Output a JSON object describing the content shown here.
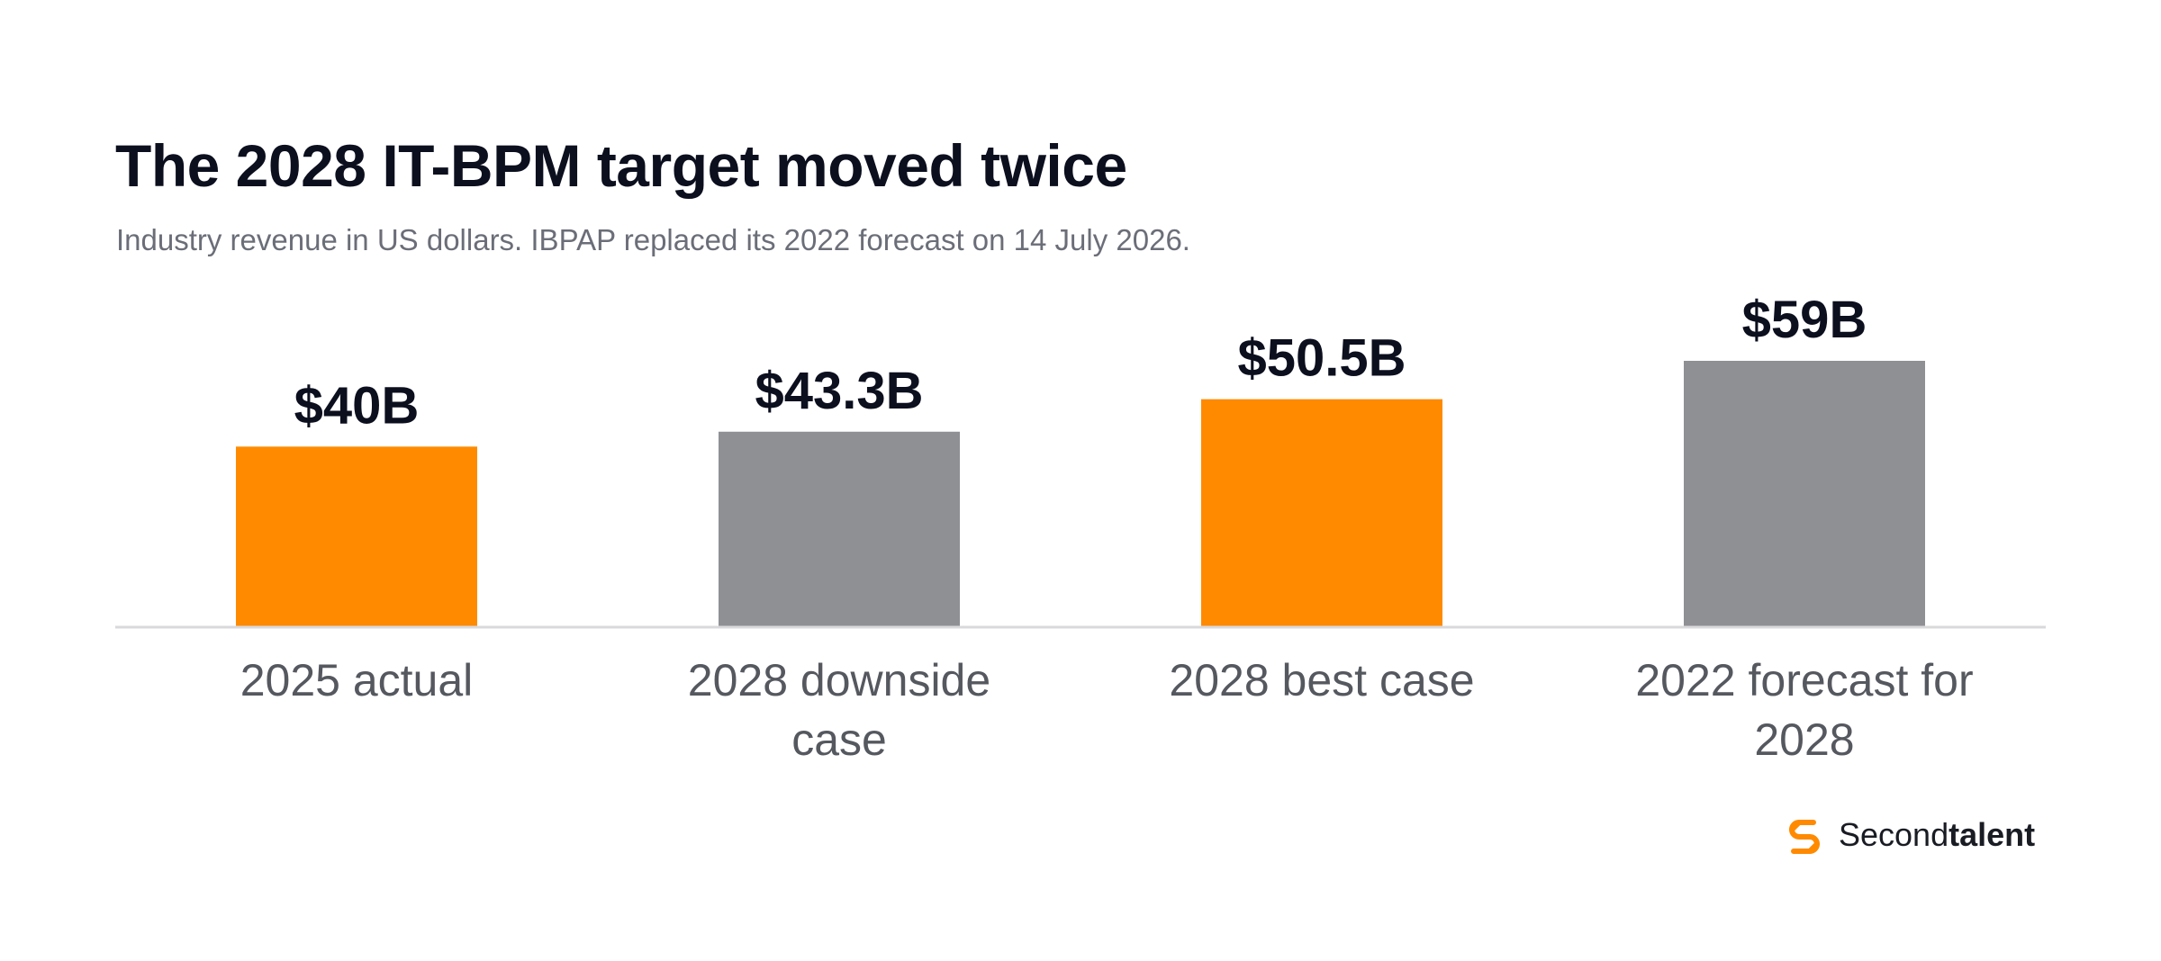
{
  "title": "The 2028 IT-BPM target moved twice",
  "subtitle": "Industry revenue in US dollars. IBPAP replaced its 2022 forecast on 14 July 2026.",
  "brand": {
    "name_regular": "Second",
    "name_bold": "talent",
    "logo_icon": "s-chain-link-icon",
    "color": "#FF8A00"
  },
  "colors": {
    "accent": "#FF8A00",
    "neutral": "#8F9094",
    "baseline": "#D9D9DC"
  },
  "chart_data": {
    "type": "bar",
    "categories": [
      [
        "2025 actual"
      ],
      [
        "2028 downside",
        "case"
      ],
      [
        "2028 best case"
      ],
      [
        "2022 forecast for",
        "2028"
      ]
    ],
    "values": [
      40,
      43.3,
      50.5,
      59
    ],
    "value_labels": [
      "$40B",
      "$43.3B",
      "$50.5B",
      "$59B"
    ],
    "bar_colors": [
      "#FF8A00",
      "#8F9094",
      "#FF8A00",
      "#8F9094"
    ],
    "ylim": [
      0,
      59
    ],
    "xlabel": "",
    "ylabel": "",
    "grid": false,
    "legend": "none"
  }
}
